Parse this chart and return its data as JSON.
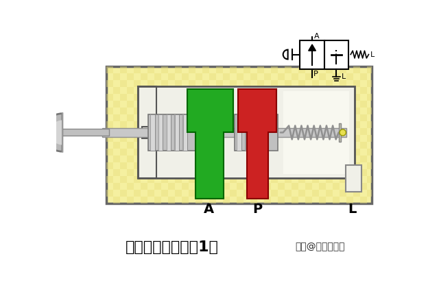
{
  "bg_color": "#ffffff",
  "valve_bg_light": "#f5f0a0",
  "valve_bg_dark": "#e8e080",
  "inner_bg": "#f0eed8",
  "spring_chamber_bg": "#f8f8f0",
  "green_color": "#22aa22",
  "green_edge": "#006600",
  "red_color": "#cc2222",
  "red_edge": "#880000",
  "gray_land": "#b8b8b8",
  "gray_land_edge": "#888888",
  "gray_dark": "#909090",
  "shaft_color": "#c8c8c8",
  "shaft_edge": "#909090",
  "spring_color": "#aaaaaa",
  "small_box_color": "#e8e8d0",
  "title": "二位二通换向阀（1）",
  "subtitle": "头条@一位工程师",
  "label_A": "A",
  "label_P": "P",
  "label_L": "L",
  "title_fontsize": 16,
  "label_fontsize": 14
}
